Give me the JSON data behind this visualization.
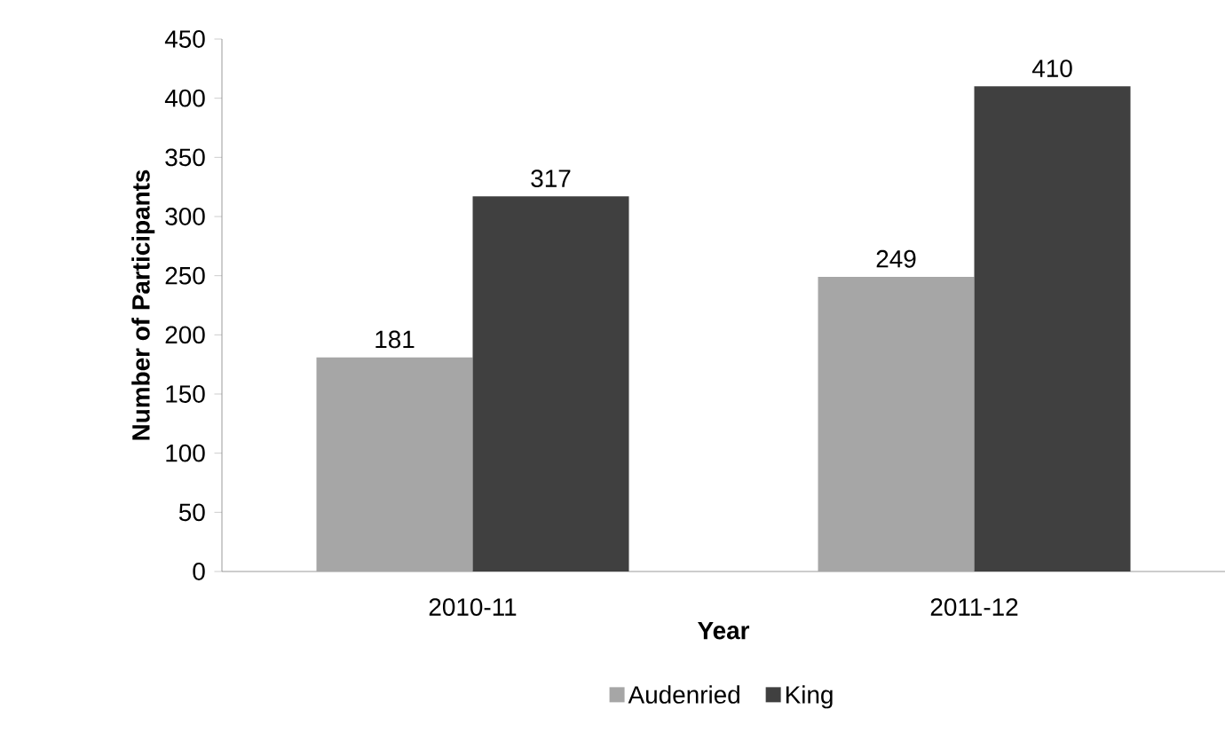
{
  "chart_data": {
    "type": "bar",
    "xlabel": "Year",
    "ylabel": "Number of Participants",
    "categories": [
      "2010-11",
      "2011-12"
    ],
    "series": [
      {
        "name": "Audenried",
        "color": "#a6a6a6",
        "values": [
          181,
          249
        ]
      },
      {
        "name": "King",
        "color": "#404040",
        "values": [
          317,
          410
        ]
      }
    ],
    "ylim": [
      0,
      450
    ],
    "yticks": [
      0,
      50,
      100,
      150,
      200,
      250,
      300,
      350,
      400,
      450
    ],
    "data_labels": true,
    "grid": false,
    "legend": "bottom"
  }
}
